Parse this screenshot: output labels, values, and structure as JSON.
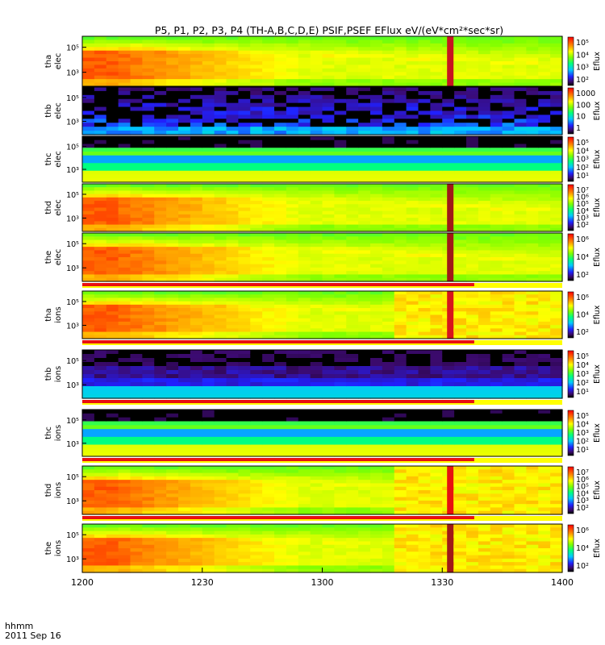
{
  "chart_data": {
    "type": "heatmap",
    "title": "P5, P1, P2, P3, P4 (TH-A,B,C,D,E) PSIF,PSEF EFlux eV/(eV*cm²*sec*sr)",
    "x_ticks": [
      "1200",
      "1230",
      "1300",
      "1330",
      "1400"
    ],
    "x_label_top": "hhmm",
    "x_label_bottom": "2011 Sep 16",
    "x_range": [
      "12:00",
      "14:00"
    ],
    "panels": [
      {
        "probe": "tha",
        "species": "elec",
        "yticks": [
          "10⁵",
          "10³"
        ],
        "cbar_label": "Eflux",
        "cbar_ticks": [
          "10⁵",
          "10⁴",
          "10³",
          "10²"
        ],
        "profile": "elec_dense",
        "spike_time": "13:32",
        "spike_color": "#c81420",
        "band": false
      },
      {
        "probe": "thb",
        "species": "elec",
        "yticks": [
          "10⁵",
          "10³"
        ],
        "cbar_label": "Eflux",
        "cbar_ticks": [
          "1000",
          "100",
          "10",
          "1"
        ],
        "profile": "sparse",
        "spike_time": "",
        "spike_color": "",
        "band": false
      },
      {
        "probe": "thc",
        "species": "elec",
        "yticks": [
          "10⁵",
          "10³"
        ],
        "cbar_label": "Eflux",
        "cbar_ticks": [
          "10⁵",
          "10⁴",
          "10³",
          "10²",
          "10¹"
        ],
        "profile": "stratified",
        "spike_time": "",
        "spike_color": "",
        "band": false
      },
      {
        "probe": "thd",
        "species": "elec",
        "yticks": [
          "10⁵",
          "10³"
        ],
        "cbar_label": "Eflux",
        "cbar_ticks": [
          "10⁷",
          "10⁶",
          "10⁵",
          "10⁴",
          "10³",
          "10²"
        ],
        "profile": "elec_dense",
        "spike_time": "13:32",
        "spike_color": "#a01818",
        "band": false
      },
      {
        "probe": "the",
        "species": "elec",
        "yticks": [
          "10⁵",
          "10³"
        ],
        "cbar_label": "Eflux",
        "cbar_ticks": [
          "10⁶",
          "10⁴",
          "10²"
        ],
        "profile": "elec_dense",
        "spike_time": "13:32",
        "spike_color": "#a01818",
        "band": true
      },
      {
        "probe": "tha",
        "species": "ions",
        "yticks": [
          "10⁵",
          "10³"
        ],
        "cbar_label": "Eflux",
        "cbar_ticks": [
          "10⁶",
          "10⁴",
          "10²"
        ],
        "profile": "ion_dense",
        "spike_time": "13:32",
        "spike_color": "#d8141c",
        "band": true
      },
      {
        "probe": "thb",
        "species": "ions",
        "yticks": [
          "10⁵",
          "10³"
        ],
        "cbar_label": "Eflux",
        "cbar_ticks": [
          "10⁵",
          "10⁴",
          "10³",
          "10²",
          "10¹"
        ],
        "profile": "ion_sparse",
        "spike_time": "",
        "spike_color": "",
        "band": true
      },
      {
        "probe": "thc",
        "species": "ions",
        "yticks": [
          "10⁵",
          "10³"
        ],
        "cbar_label": "Eflux",
        "cbar_ticks": [
          "10⁵",
          "10⁴",
          "10³",
          "10²",
          "10¹"
        ],
        "profile": "stratified_ion",
        "spike_time": "",
        "spike_color": "",
        "band": true
      },
      {
        "probe": "thd",
        "species": "ions",
        "yticks": [
          "10⁵",
          "10³"
        ],
        "cbar_label": "Eflux",
        "cbar_ticks": [
          "10⁷",
          "10⁶",
          "10⁵",
          "10⁴",
          "10³",
          "10²"
        ],
        "profile": "ion_dense",
        "spike_time": "13:32",
        "spike_color": "#e81010",
        "band": true
      },
      {
        "probe": "the",
        "species": "ions",
        "yticks": [
          "10⁵",
          "10³"
        ],
        "cbar_label": "Eflux",
        "cbar_ticks": [
          "10⁶",
          "10⁴",
          "10²"
        ],
        "profile": "ion_dense",
        "spike_time": "13:32",
        "spike_color": "#a01818",
        "band": false
      }
    ]
  }
}
